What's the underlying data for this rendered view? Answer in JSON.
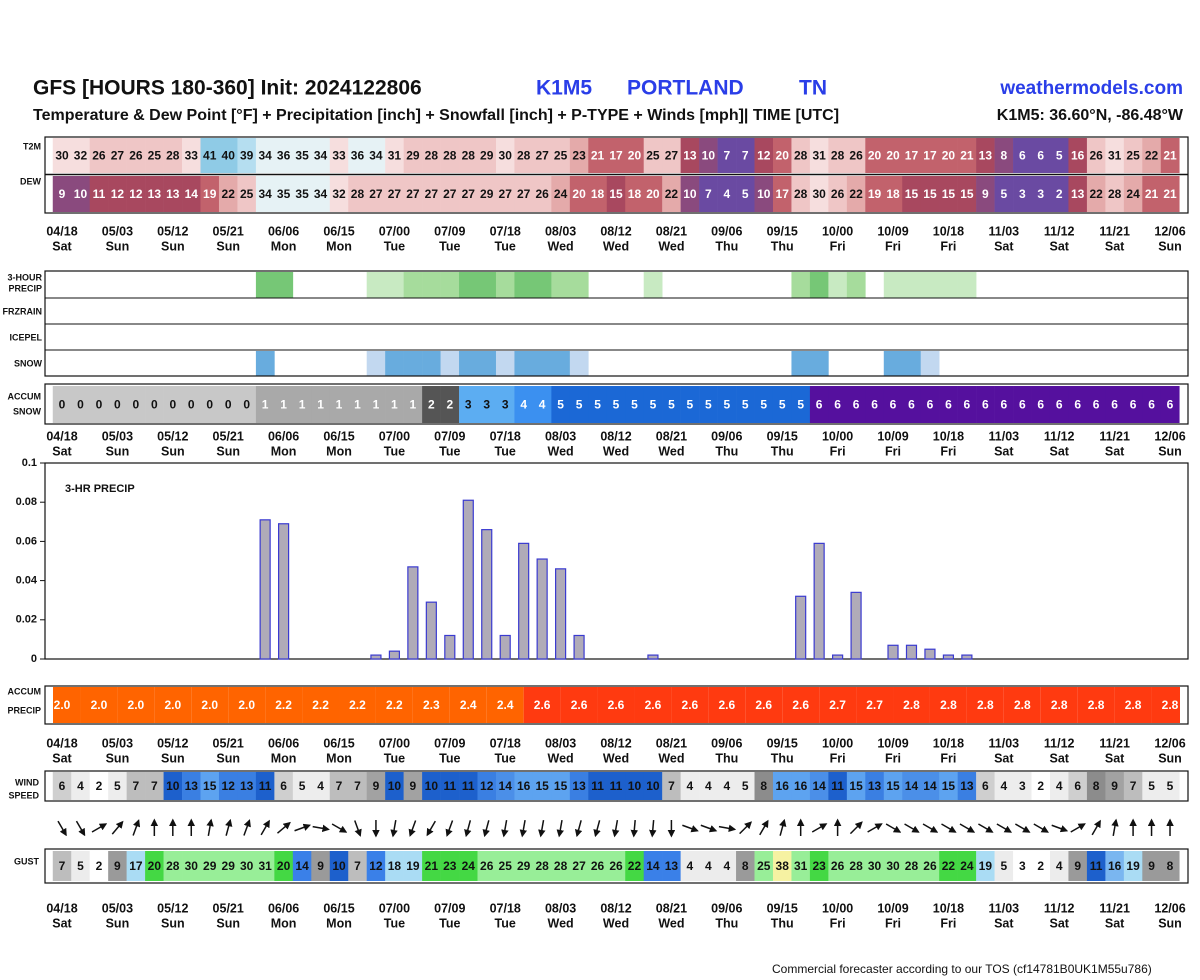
{
  "header": {
    "title": "GFS [HOURS 180-360] Init: 2024122806",
    "station": "K1M5",
    "city": "PORTLAND",
    "state": "TN",
    "site": "weathermodels.com",
    "subtitle": "Temperature & Dew Point [°F] + Precipitation [inch] + Snowfall [inch] + P-TYPE + Winds [mph]| TIME [UTC]",
    "location": "K1M5: 36.60°N, -86.48°W"
  },
  "time_axis": {
    "dates": [
      "04/18",
      "05/03",
      "05/12",
      "05/21",
      "06/06",
      "06/15",
      "07/00",
      "07/09",
      "07/18",
      "08/03",
      "08/12",
      "08/21",
      "09/06",
      "09/15",
      "10/00",
      "10/09",
      "10/18",
      "11/03",
      "11/12",
      "11/21",
      "12/06"
    ],
    "days": [
      "Sat",
      "Sun",
      "Sun",
      "Sun",
      "Mon",
      "Mon",
      "Tue",
      "Tue",
      "Tue",
      "Wed",
      "Wed",
      "Wed",
      "Thu",
      "Thu",
      "Fri",
      "Fri",
      "Fri",
      "Sat",
      "Sat",
      "Sat",
      "Sun"
    ]
  },
  "t2m": {
    "label": "T2M",
    "values": [
      30,
      32,
      26,
      27,
      26,
      25,
      28,
      33,
      41,
      40,
      39,
      34,
      36,
      35,
      34,
      33,
      36,
      34,
      31,
      29,
      28,
      28,
      28,
      29,
      30,
      28,
      27,
      25,
      23,
      21,
      17,
      20,
      25,
      27,
      13,
      10,
      7,
      7,
      12,
      20,
      28,
      31,
      28,
      26,
      20,
      20,
      17,
      17,
      20,
      21,
      13,
      8,
      6,
      6,
      5,
      16,
      26,
      31,
      25,
      22,
      21
    ]
  },
  "dew": {
    "label": "DEW",
    "values": [
      9,
      10,
      11,
      12,
      12,
      13,
      13,
      14,
      19,
      22,
      25,
      34,
      35,
      35,
      34,
      32,
      28,
      27,
      27,
      27,
      27,
      27,
      27,
      29,
      27,
      27,
      26,
      24,
      20,
      18,
      15,
      18,
      20,
      22,
      10,
      7,
      4,
      5,
      10,
      17,
      28,
      30,
      26,
      22,
      19,
      18,
      15,
      15,
      15,
      15,
      9,
      5,
      3,
      3,
      2,
      13,
      22,
      28,
      24,
      21,
      21
    ]
  },
  "ptype": {
    "precip_label": [
      "3-HOUR",
      "PRECIP"
    ],
    "frzrain_label": "FRZRAIN",
    "icepel_label": "ICEPEL",
    "snow_label": "SNOW"
  },
  "snow": {
    "values": [
      0,
      0,
      0,
      0,
      0,
      0,
      0,
      0,
      0,
      0,
      0,
      0.7,
      0,
      0,
      0,
      0,
      0,
      0.2,
      0.4,
      0.6,
      0.4,
      0.2,
      0.8,
      0.7,
      0.2,
      0.6,
      0.5,
      0.5,
      0.2,
      0,
      0,
      0,
      0,
      0,
      0,
      0,
      0,
      0,
      0,
      0,
      0.4,
      0.6,
      0,
      0,
      0,
      0.35,
      0.35,
      0.1,
      0,
      0,
      0,
      0,
      0,
      0,
      0,
      0,
      0,
      0,
      0,
      0,
      0
    ]
  },
  "accum_snow": {
    "label": [
      "ACCUM",
      "SNOW"
    ],
    "values": [
      0,
      0,
      0,
      0,
      0,
      0,
      0,
      0,
      0,
      0,
      0,
      1,
      1,
      1,
      1,
      1,
      1,
      1,
      1,
      1,
      2,
      2,
      3,
      3,
      3,
      4,
      4,
      5,
      5,
      5,
      5,
      5,
      5,
      5,
      5,
      5,
      5,
      5,
      5,
      5,
      5,
      6,
      6,
      6,
      6,
      6,
      6,
      6,
      6,
      6,
      6,
      6,
      6,
      6,
      6,
      6,
      6,
      6,
      6,
      6,
      6
    ]
  },
  "chart_data": {
    "type": "bar",
    "label": "3-HR PRECIP",
    "values": [
      0,
      0,
      0,
      0,
      0,
      0,
      0,
      0,
      0,
      0,
      0,
      0.071,
      0.069,
      0,
      0,
      0,
      0,
      0.002,
      0.004,
      0.047,
      0.029,
      0.012,
      0.081,
      0.066,
      0.012,
      0.059,
      0.051,
      0.046,
      0.012,
      0,
      0,
      0,
      0.002,
      0,
      0,
      0,
      0,
      0,
      0,
      0,
      0.032,
      0.059,
      0.002,
      0.034,
      0,
      0.007,
      0.007,
      0.005,
      0.002,
      0.002,
      0,
      0,
      0,
      0,
      0,
      0,
      0,
      0,
      0,
      0,
      0
    ],
    "ylim": [
      0,
      0.1
    ],
    "yticks": [
      0,
      0.02,
      0.04,
      0.06,
      0.08,
      0.1
    ],
    "color": "#b0abb8",
    "edge_color": "#3a3ad0"
  },
  "accum_precip": {
    "label": [
      "ACCUM",
      "PRECIP"
    ],
    "values": [
      2,
      2,
      2,
      2,
      2,
      2,
      2.2,
      2.2,
      2.2,
      2.2,
      2.3,
      2.4,
      2.4,
      2.6,
      2.6,
      2.6,
      2.6,
      2.6,
      2.6,
      2.6,
      2.6,
      2.7,
      2.7,
      2.8,
      2.8,
      2.8,
      2.8,
      2.8,
      2.8,
      2.8,
      2.8
    ],
    "value_labels": [
      "2.0",
      "2.0",
      "2.0",
      "2.0",
      "2.0",
      "2.0",
      "2.2",
      "2.2",
      "2.2",
      "2.2",
      "2.3",
      "2.4",
      "2.4",
      "2.6",
      "2.6",
      "2.6",
      "2.6",
      "2.6",
      "2.6",
      "2.6",
      "2.6",
      "2.7",
      "2.7",
      "2.8",
      "2.8",
      "2.8",
      "2.8",
      "2.8",
      "2.8",
      "2.8",
      "2.8"
    ]
  },
  "wind": {
    "label": [
      "WIND",
      "SPEED"
    ],
    "values": [
      6,
      4,
      2,
      5,
      7,
      7,
      10,
      13,
      15,
      12,
      13,
      11,
      6,
      5,
      4,
      7,
      7,
      9,
      10,
      9,
      10,
      11,
      11,
      12,
      14,
      16,
      15,
      15,
      13,
      11,
      11,
      10,
      10,
      7,
      4,
      4,
      4,
      5,
      8,
      16,
      16,
      14,
      11,
      15,
      13,
      15,
      14,
      14,
      15,
      13,
      6,
      4,
      3,
      2,
      4,
      6,
      8,
      9,
      7,
      5,
      5
    ],
    "directions": [
      150,
      150,
      60,
      40,
      20,
      0,
      0,
      0,
      10,
      15,
      20,
      30,
      50,
      70,
      100,
      120,
      160,
      180,
      190,
      200,
      210,
      200,
      195,
      195,
      190,
      190,
      190,
      190,
      195,
      195,
      190,
      185,
      185,
      180,
      110,
      110,
      100,
      45,
      30,
      15,
      0,
      60,
      0,
      45,
      60,
      120,
      120,
      120,
      120,
      120,
      120,
      120,
      120,
      120,
      110,
      60,
      30,
      10,
      0,
      0,
      0
    ]
  },
  "gust": {
    "label": "GUST",
    "values": [
      7,
      5,
      2,
      9,
      17,
      20,
      28,
      30,
      29,
      29,
      30,
      31,
      20,
      14,
      9,
      10,
      7,
      12,
      18,
      19,
      21,
      23,
      24,
      26,
      25,
      29,
      28,
      28,
      27,
      26,
      26,
      22,
      14,
      13,
      4,
      4,
      4,
      8,
      25,
      38,
      31,
      23,
      26,
      28,
      30,
      30,
      28,
      26,
      22,
      24,
      19,
      5,
      3,
      2,
      4,
      9,
      11,
      16,
      19,
      9,
      8
    ]
  },
  "footer": "Commercial forecaster according to our TOS (cf14781B0UK1M55u786)"
}
